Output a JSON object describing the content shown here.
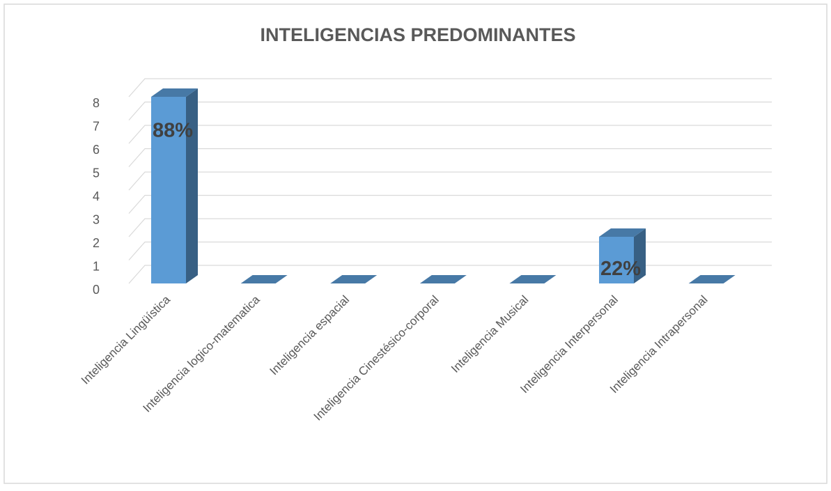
{
  "chart_data": {
    "type": "bar3d",
    "title": "INTELIGENCIAS PREDOMINANTES",
    "categories": [
      "Inteligencia Lingüística",
      "Inteligencia logico-matematica",
      "Inteligencia espacial",
      "Inteligencia Cinestésico-corporal",
      "Inteligencia Musical",
      "Inteligencia Interpersonal",
      "Inteligencia Intrapersonal"
    ],
    "values": [
      8,
      0,
      0,
      0,
      0,
      2,
      0
    ],
    "annotations": [
      "88%",
      null,
      null,
      null,
      null,
      "22%",
      null
    ],
    "color": "#5b9bd5",
    "ylim": [
      0,
      8
    ],
    "yticks": [
      0,
      1,
      2,
      3,
      4,
      5,
      6,
      7,
      8
    ],
    "grid": true
  }
}
